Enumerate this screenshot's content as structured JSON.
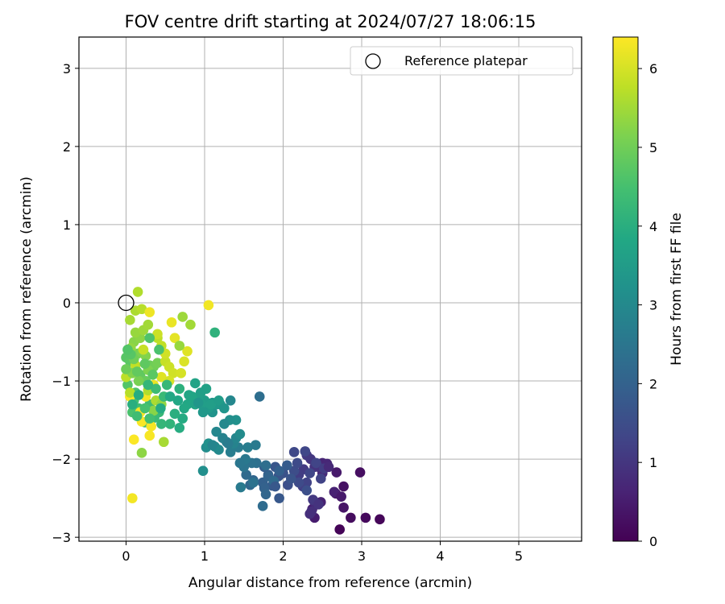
{
  "chart_data": {
    "type": "scatter",
    "title": "FOV centre drift starting at 2024/07/27 18:06:15",
    "xlabel": "Angular distance from reference (arcmin)",
    "ylabel": "Rotation from reference (arcmin)",
    "xlim": [
      -0.6,
      5.8
    ],
    "ylim": [
      -3.05,
      3.4
    ],
    "x_ticks": [
      "0",
      "1",
      "2",
      "3",
      "4",
      "5"
    ],
    "y_ticks": [
      "−3",
      "−2",
      "−1",
      "0",
      "1",
      "2",
      "3"
    ],
    "grid": true,
    "legend": {
      "placement": "top-right",
      "entries": [
        {
          "label": "Reference platepar",
          "marker": "open-circle"
        }
      ]
    },
    "colorbar": {
      "label": "Hours from first FF file",
      "colormap": "viridis",
      "range": [
        0,
        6.4
      ],
      "ticks": [
        "0",
        "1",
        "2",
        "3",
        "4",
        "5",
        "6"
      ]
    },
    "reference_point": {
      "x": 0,
      "y": 0
    },
    "series": [
      {
        "name": "Reference platepar",
        "marker": "open-circle",
        "points": [
          [
            0,
            0
          ]
        ]
      },
      {
        "marker": "filled-circle",
        "color_by": "hours",
        "points": [
          [
            2.72,
            -2.9,
            0.05
          ],
          [
            3.23,
            -2.77,
            0.1
          ],
          [
            3.05,
            -2.75,
            0.15
          ],
          [
            2.86,
            -2.75,
            0.2
          ],
          [
            2.98,
            -2.17,
            0.25
          ],
          [
            2.77,
            -2.35,
            0.3
          ],
          [
            2.77,
            -2.62,
            0.35
          ],
          [
            2.67,
            -2.44,
            0.4
          ],
          [
            2.68,
            -2.17,
            0.45
          ],
          [
            2.4,
            -2.75,
            0.5
          ],
          [
            2.37,
            -2.64,
            0.55
          ],
          [
            2.48,
            -2.55,
            0.6
          ],
          [
            2.5,
            -2.05,
            0.65
          ],
          [
            2.56,
            -2.06,
            0.7
          ],
          [
            2.5,
            -2.18,
            0.75
          ],
          [
            2.4,
            -2.55,
            0.8
          ],
          [
            2.36,
            -2.67,
            0.85
          ],
          [
            2.45,
            -2.1,
            0.9
          ],
          [
            2.4,
            -2.1,
            0.95
          ],
          [
            2.35,
            -2.0,
            1.0
          ],
          [
            2.3,
            -1.95,
            1.05
          ],
          [
            2.26,
            -2.13,
            1.1
          ],
          [
            2.2,
            -2.2,
            1.15
          ],
          [
            2.25,
            -2.35,
            1.2
          ],
          [
            2.3,
            -2.3,
            1.25
          ],
          [
            2.42,
            -2.05,
            1.3
          ],
          [
            2.28,
            -1.9,
            1.35
          ],
          [
            2.14,
            -1.91,
            1.4
          ],
          [
            2.2,
            -2.3,
            1.45
          ],
          [
            2.14,
            -2.15,
            1.5
          ],
          [
            2.06,
            -2.33,
            1.55
          ],
          [
            2.0,
            -2.18,
            1.6
          ],
          [
            1.94,
            -2.22,
            1.65
          ],
          [
            1.9,
            -2.1,
            1.7
          ],
          [
            1.95,
            -2.5,
            1.75
          ],
          [
            1.86,
            -2.34,
            1.8
          ],
          [
            1.81,
            -2.2,
            1.85
          ],
          [
            1.76,
            -2.1,
            1.9
          ],
          [
            1.74,
            -2.3,
            1.95
          ],
          [
            1.76,
            -2.37,
            2.0
          ],
          [
            1.81,
            -2.22,
            2.05
          ],
          [
            1.62,
            -2.27,
            2.1
          ],
          [
            1.58,
            -2.33,
            2.15
          ],
          [
            1.53,
            -2.2,
            2.2
          ],
          [
            1.74,
            -2.6,
            2.25
          ],
          [
            1.7,
            -1.2,
            2.3
          ],
          [
            1.66,
            -2.05,
            2.35
          ],
          [
            1.6,
            -2.05,
            2.4
          ],
          [
            1.5,
            -2.1,
            2.45
          ],
          [
            1.52,
            -2.0,
            2.55
          ],
          [
            1.46,
            -2.36,
            2.6
          ],
          [
            1.43,
            -1.85,
            2.65
          ],
          [
            1.33,
            -1.91,
            2.7
          ],
          [
            1.28,
            -1.78,
            2.75
          ],
          [
            1.23,
            -1.73,
            2.8
          ],
          [
            1.37,
            -1.8,
            2.85
          ],
          [
            1.4,
            -1.73,
            2.9
          ],
          [
            1.33,
            -1.25,
            2.95
          ],
          [
            1.18,
            -1.88,
            3.0
          ],
          [
            1.13,
            -1.84,
            3.05
          ],
          [
            1.02,
            -1.85,
            3.1
          ],
          [
            0.98,
            -2.15,
            3.15
          ],
          [
            1.05,
            -1.8,
            3.2
          ],
          [
            1.1,
            -1.4,
            3.25
          ],
          [
            1.2,
            -1.3,
            3.3
          ],
          [
            1.1,
            -1.28,
            3.35
          ],
          [
            1.15,
            -1.3,
            3.4
          ],
          [
            1.05,
            -1.35,
            3.45
          ],
          [
            1.0,
            -1.25,
            3.5
          ],
          [
            0.96,
            -1.3,
            3.55
          ],
          [
            0.92,
            -1.23,
            3.6
          ],
          [
            1.02,
            -1.1,
            3.65
          ],
          [
            0.88,
            -1.03,
            3.7
          ],
          [
            0.8,
            -1.18,
            3.75
          ],
          [
            0.78,
            -1.3,
            3.8
          ],
          [
            0.74,
            -1.35,
            3.85
          ],
          [
            0.72,
            -1.48,
            3.9
          ],
          [
            0.68,
            -1.6,
            3.95
          ],
          [
            0.62,
            -1.42,
            4.0
          ],
          [
            0.68,
            -1.1,
            4.05
          ],
          [
            1.13,
            -0.38,
            4.1
          ],
          [
            0.56,
            -1.55,
            4.15
          ],
          [
            0.45,
            -1.55,
            4.2
          ],
          [
            0.42,
            -1.4,
            4.25
          ],
          [
            0.36,
            -1.47,
            4.3
          ],
          [
            0.3,
            -1.3,
            4.35
          ],
          [
            0.24,
            -1.53,
            4.4
          ],
          [
            0.16,
            -1.35,
            4.45
          ],
          [
            0.1,
            -1.25,
            4.5
          ],
          [
            0.08,
            -1.4,
            4.55
          ],
          [
            0.12,
            -1.15,
            4.6
          ],
          [
            0.02,
            -1.05,
            4.65
          ],
          [
            0.0,
            -0.7,
            4.7
          ],
          [
            0.05,
            -0.75,
            4.75
          ],
          [
            0.18,
            -0.92,
            4.8
          ],
          [
            0.2,
            -0.98,
            4.85
          ],
          [
            0.25,
            -1.0,
            4.9
          ],
          [
            0.3,
            -0.8,
            4.95
          ],
          [
            0.35,
            -0.82,
            5.0
          ],
          [
            0.4,
            -0.77,
            5.05
          ],
          [
            0.15,
            -0.65,
            5.1
          ],
          [
            0.2,
            -0.63,
            5.15
          ],
          [
            0.25,
            -0.68,
            5.2
          ],
          [
            0.1,
            -0.5,
            5.25
          ],
          [
            0.18,
            -0.45,
            5.3
          ],
          [
            0.06,
            -0.58,
            5.35
          ],
          [
            0.12,
            -0.38,
            5.4
          ],
          [
            0.22,
            -0.35,
            5.45
          ],
          [
            0.28,
            -0.28,
            5.5
          ],
          [
            0.05,
            -0.22,
            5.55
          ],
          [
            0.12,
            -0.1,
            5.6
          ],
          [
            0.15,
            0.14,
            5.65
          ],
          [
            0.2,
            -0.08,
            5.7
          ],
          [
            0.4,
            -0.45,
            5.75
          ],
          [
            0.45,
            -0.55,
            5.8
          ],
          [
            0.5,
            -0.75,
            5.85
          ],
          [
            0.55,
            -0.82,
            5.9
          ],
          [
            0.6,
            -0.9,
            5.95
          ],
          [
            0.7,
            -0.9,
            6.0
          ],
          [
            0.74,
            -0.75,
            6.05
          ],
          [
            0.78,
            -0.62,
            6.1
          ],
          [
            0.62,
            -0.45,
            6.15
          ],
          [
            0.58,
            -0.25,
            6.2
          ],
          [
            0.3,
            -0.12,
            6.25
          ],
          [
            1.05,
            -0.03,
            6.28
          ],
          [
            0.08,
            -2.5,
            6.3
          ],
          [
            0.32,
            -1.58,
            6.32
          ],
          [
            0.3,
            -1.7,
            6.34
          ],
          [
            0.2,
            -1.52,
            6.36
          ],
          [
            0.1,
            -1.75,
            6.38
          ],
          [
            0.05,
            -1.2,
            6.4
          ],
          [
            0.18,
            -1.4,
            6.4
          ],
          [
            0.25,
            -1.2,
            6.3
          ],
          [
            0.35,
            -1.05,
            6.2
          ],
          [
            0.45,
            -0.95,
            6.1
          ],
          [
            0.55,
            -1.0,
            6.0
          ],
          [
            0.5,
            -0.65,
            5.95
          ],
          [
            0.4,
            -0.4,
            5.9
          ],
          [
            0.22,
            -0.6,
            5.85
          ],
          [
            0.12,
            -0.8,
            5.8
          ],
          [
            0.0,
            -0.95,
            5.75
          ],
          [
            0.05,
            -1.15,
            5.7
          ],
          [
            0.28,
            -1.12,
            5.65
          ],
          [
            0.38,
            -1.25,
            5.6
          ],
          [
            0.48,
            -1.78,
            5.55
          ],
          [
            0.72,
            -0.18,
            5.45
          ],
          [
            0.82,
            -0.28,
            5.5
          ],
          [
            0.68,
            -0.55,
            5.4
          ],
          [
            0.45,
            -1.3,
            5.35
          ],
          [
            0.2,
            -1.92,
            5.3
          ],
          [
            0.35,
            -1.38,
            5.25
          ],
          [
            0.08,
            -0.9,
            5.2
          ],
          [
            0.28,
            -0.86,
            5.15
          ],
          [
            0.16,
            -1.0,
            5.1
          ],
          [
            0.1,
            -0.72,
            5.0
          ],
          [
            0.0,
            -0.85,
            4.95
          ],
          [
            0.14,
            -0.88,
            4.85
          ],
          [
            0.24,
            -0.78,
            4.8
          ],
          [
            0.34,
            -0.92,
            4.75
          ],
          [
            0.06,
            -0.66,
            4.7
          ],
          [
            0.02,
            -0.6,
            4.65
          ],
          [
            0.3,
            -0.45,
            4.6
          ],
          [
            0.42,
            -0.6,
            4.55
          ],
          [
            0.24,
            -1.35,
            4.5
          ],
          [
            0.3,
            -1.48,
            4.45
          ],
          [
            0.14,
            -1.45,
            4.4
          ],
          [
            0.38,
            -1.1,
            4.35
          ],
          [
            0.48,
            -1.2,
            4.3
          ],
          [
            0.52,
            -1.05,
            4.25
          ],
          [
            0.28,
            -1.05,
            4.2
          ],
          [
            0.08,
            -1.3,
            4.0
          ],
          [
            0.16,
            -1.18,
            3.95
          ],
          [
            0.44,
            -1.35,
            3.9
          ],
          [
            0.56,
            -1.2,
            3.85
          ],
          [
            0.66,
            -1.25,
            3.8
          ],
          [
            0.84,
            -1.2,
            3.75
          ],
          [
            0.88,
            -1.3,
            3.7
          ],
          [
            0.95,
            -1.15,
            3.6
          ],
          [
            1.08,
            -1.3,
            3.55
          ],
          [
            1.18,
            -1.25,
            3.5
          ],
          [
            0.98,
            -1.4,
            3.4
          ],
          [
            0.92,
            -1.28,
            3.35
          ],
          [
            1.25,
            -1.35,
            3.3
          ],
          [
            1.4,
            -1.5,
            3.2
          ],
          [
            1.32,
            -1.5,
            3.15
          ],
          [
            1.45,
            -1.68,
            3.05
          ],
          [
            1.25,
            -1.55,
            3.0
          ],
          [
            1.15,
            -1.65,
            2.95
          ],
          [
            1.1,
            -1.82,
            2.9
          ],
          [
            1.55,
            -1.85,
            2.7
          ],
          [
            1.65,
            -1.82,
            2.6
          ],
          [
            1.3,
            -1.8,
            2.65
          ],
          [
            1.45,
            -2.05,
            2.5
          ],
          [
            1.62,
            -2.3,
            2.4
          ],
          [
            1.78,
            -2.08,
            2.3
          ],
          [
            1.88,
            -2.28,
            2.2
          ],
          [
            1.78,
            -2.45,
            2.1
          ],
          [
            1.95,
            -2.15,
            1.95
          ],
          [
            2.05,
            -2.08,
            1.85
          ],
          [
            1.9,
            -2.35,
            1.75
          ],
          [
            2.1,
            -2.25,
            1.65
          ],
          [
            2.3,
            -2.4,
            1.55
          ],
          [
            2.18,
            -2.05,
            1.45
          ],
          [
            2.34,
            -2.18,
            1.35
          ],
          [
            2.48,
            -2.25,
            1.25
          ],
          [
            2.52,
            -2.12,
            1.15
          ],
          [
            2.38,
            -2.52,
            1.05
          ],
          [
            2.45,
            -2.58,
            0.95
          ],
          [
            2.34,
            -2.7,
            0.85
          ],
          [
            2.58,
            -2.1,
            0.75
          ],
          [
            2.65,
            -2.42,
            0.6
          ],
          [
            2.74,
            -2.48,
            0.45
          ]
        ]
      }
    ]
  }
}
